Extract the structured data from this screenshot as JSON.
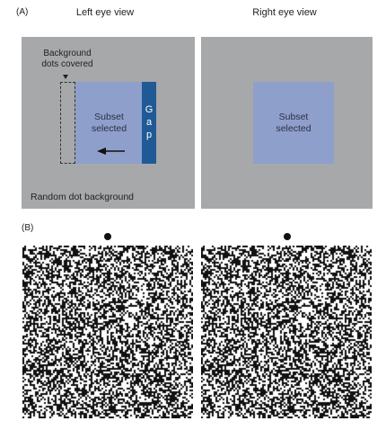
{
  "panel_a": {
    "label": "(A)",
    "left_title": "Left eye view",
    "right_title": "Right eye view",
    "background_dots_label_line1": "Background",
    "background_dots_label_line2": "dots covered",
    "subset_line1": "Subset",
    "subset_line2": "selected",
    "gap_letters": [
      "G",
      "a",
      "p"
    ],
    "random_dot_label": "Random dot background",
    "arrow_glyph": "◄"
  },
  "panel_b": {
    "label": "(B)"
  },
  "colors": {
    "panel_gray": "#a7a8aa",
    "subset_blue": "#8f9fcb",
    "gap_blue": "#1f5a96"
  }
}
